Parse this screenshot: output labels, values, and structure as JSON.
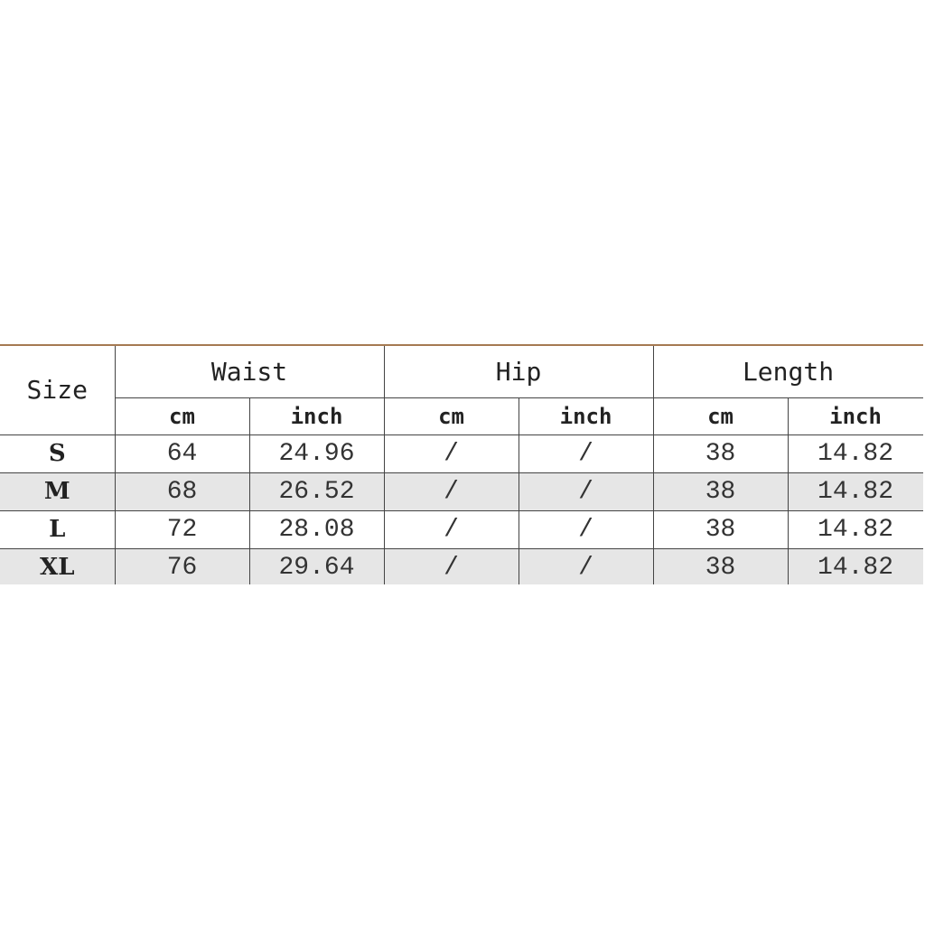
{
  "table": {
    "size_header": "Size",
    "groups": [
      "Waist",
      "Hip",
      "Length"
    ],
    "units": [
      "cm",
      "inch",
      "cm",
      "inch",
      "cm",
      "inch"
    ],
    "rows": [
      {
        "size": "S",
        "values": [
          "64",
          "24.96",
          "/",
          "/",
          "38",
          "14.82"
        ]
      },
      {
        "size": "M",
        "values": [
          "68",
          "26.52",
          "/",
          "/",
          "38",
          "14.82"
        ]
      },
      {
        "size": "L",
        "values": [
          "72",
          "28.08",
          "/",
          "/",
          "38",
          "14.82"
        ]
      },
      {
        "size": "XL",
        "values": [
          "76",
          "29.64",
          "/",
          "/",
          "38",
          "14.82"
        ]
      }
    ],
    "colors": {
      "border_top": "#a57a52",
      "alt_row": "#e6e6e6"
    }
  }
}
